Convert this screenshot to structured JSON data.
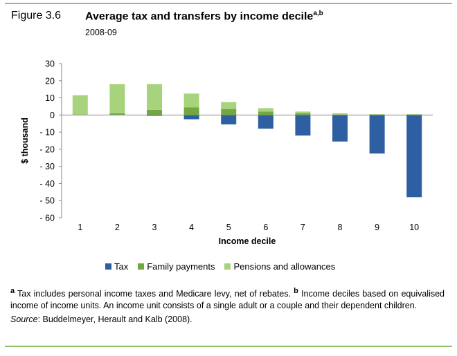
{
  "figure": {
    "label": "Figure 3.6",
    "title": "Average tax and transfers by income decile",
    "title_superscript": "a,b",
    "subtitle": "2008-09"
  },
  "chart_data": {
    "type": "bar",
    "stacked": true,
    "categories": [
      "1",
      "2",
      "3",
      "4",
      "5",
      "6",
      "7",
      "8",
      "9",
      "10"
    ],
    "series": [
      {
        "name": "Tax",
        "color": "#2e5fa3",
        "values": [
          0,
          0,
          -0.5,
          -2.5,
          -5.5,
          -8,
          -12,
          -15.5,
          -22.5,
          -48
        ]
      },
      {
        "name": "Family payments",
        "color": "#71a83f",
        "values": [
          0,
          1,
          3,
          4.5,
          3.5,
          2,
          1,
          0,
          0,
          0
        ]
      },
      {
        "name": "Pensions and allowances",
        "color": "#a6d37b",
        "values": [
          11.5,
          17,
          15,
          8,
          4,
          2,
          1,
          1,
          0.5,
          0.5
        ]
      }
    ],
    "y_ticks": [
      "30",
      "20",
      "10",
      "0",
      "- 10",
      "- 20",
      "- 30",
      "- 40",
      "- 50",
      "- 60"
    ],
    "y_tick_values": [
      30,
      20,
      10,
      0,
      -10,
      -20,
      -30,
      -40,
      -50,
      -60
    ],
    "xlabel": "Income decile",
    "ylabel": "$ thousand",
    "ylim": [
      -60,
      30
    ],
    "legend_position": "bottom"
  },
  "notes": {
    "note_a_marker": "a",
    "note_a": "Tax includes personal income taxes and Medicare levy, net of rebates.",
    "note_b_marker": "b",
    "note_b": "Income deciles based on equivalised income of income units. An income unit consists of a single adult or a couple and their dependent children.",
    "source_label": "Source",
    "source_text": ": Buddelmeyer, Herault and Kalb (2008)."
  }
}
